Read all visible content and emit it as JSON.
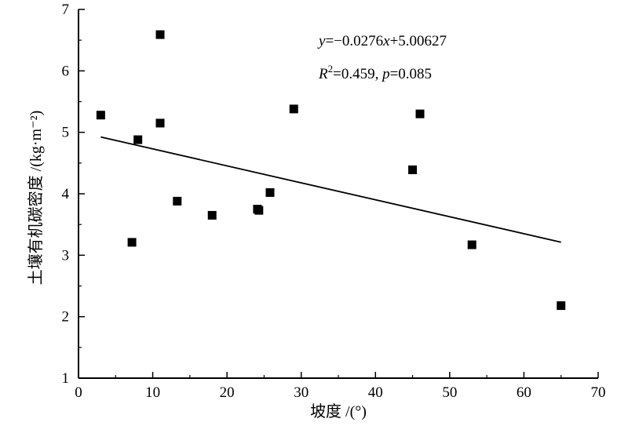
{
  "chart_data": {
    "type": "scatter",
    "title": "",
    "xlabel": "坡度 /(°)",
    "ylabel": "土壤有机碳密度 /(kg·m⁻²)",
    "xlim": [
      0,
      70
    ],
    "ylim": [
      1,
      7
    ],
    "xticks": [
      "0",
      "10",
      "20",
      "30",
      "40",
      "50",
      "60",
      "70"
    ],
    "yticks": [
      "1",
      "2",
      "3",
      "4",
      "5",
      "6",
      "7"
    ],
    "grid": false,
    "legend": "none",
    "marker": "square",
    "marker_color": "#000000",
    "line_color": "#000000",
    "points": [
      {
        "x": 3,
        "y": 5.28
      },
      {
        "x": 7.2,
        "y": 3.21
      },
      {
        "x": 8,
        "y": 4.88
      },
      {
        "x": 11,
        "y": 6.59
      },
      {
        "x": 11,
        "y": 5.15
      },
      {
        "x": 13.3,
        "y": 3.88
      },
      {
        "x": 18,
        "y": 3.65
      },
      {
        "x": 24.1,
        "y": 3.75
      },
      {
        "x": 24.3,
        "y": 3.73
      },
      {
        "x": 25.8,
        "y": 4.02
      },
      {
        "x": 29,
        "y": 5.38
      },
      {
        "x": 45,
        "y": 4.39
      },
      {
        "x": 46,
        "y": 5.3
      },
      {
        "x": 53,
        "y": 3.17
      },
      {
        "x": 65,
        "y": 2.18
      }
    ],
    "fit_line": {
      "x_start": 3,
      "x_end": 65,
      "slope": -0.0276,
      "intercept": 5.00627
    },
    "annotations": {
      "equation": "y=−0.0276x+5.00627",
      "stats": "R2=0.459, p=0.085"
    }
  }
}
